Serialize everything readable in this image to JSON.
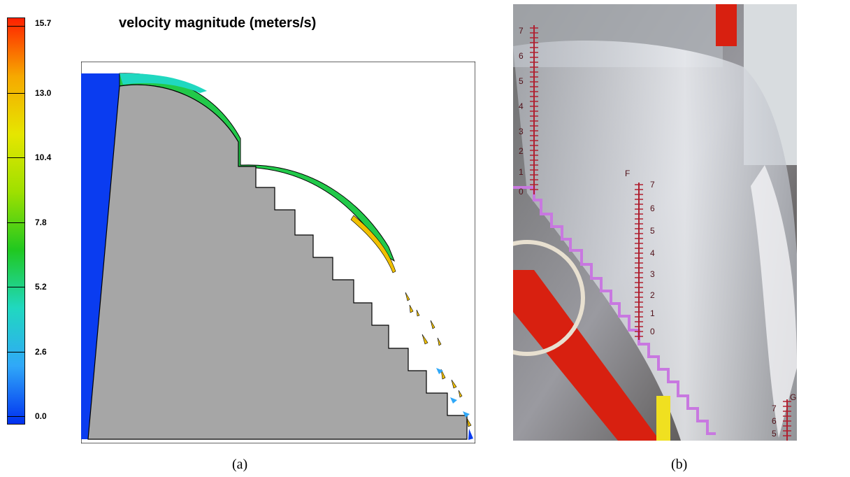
{
  "panel_a": {
    "title": "velocity magnitude (meters/s)",
    "caption": "(a)",
    "colorbar": {
      "min": 0.0,
      "max": 15.7,
      "tick_labels": [
        "15.7",
        "13.0",
        "10.4",
        "7.8",
        "5.2",
        "2.6",
        "0.0"
      ],
      "colors": [
        "#ff2000",
        "#f6a800",
        "#e6e600",
        "#9ee000",
        "#20c820",
        "#20d8c0",
        "#30a8f8",
        "#0030f0"
      ]
    },
    "colors": {
      "solid": "#a6a6a6",
      "low_velocity": "#0a3cf0",
      "mid_velocity": "#22c94a",
      "high_velocity": "#f0c000"
    }
  },
  "panel_b": {
    "caption": "(b)",
    "scale_left_labels": [
      "7",
      "6",
      "5",
      "4",
      "3",
      "2",
      "1",
      "0"
    ],
    "scale_center_labels": [
      "7",
      "6",
      "5",
      "4",
      "3",
      "2",
      "1",
      "0"
    ],
    "scale_right_labels": [
      "7",
      "6",
      "5"
    ],
    "marker_letters": [
      "F",
      "G"
    ],
    "colors": {
      "stair_outline": "#c878e0",
      "frame_red": "#d82010",
      "post_yellow": "#f0e020",
      "ruler_red": "#b02030"
    }
  }
}
